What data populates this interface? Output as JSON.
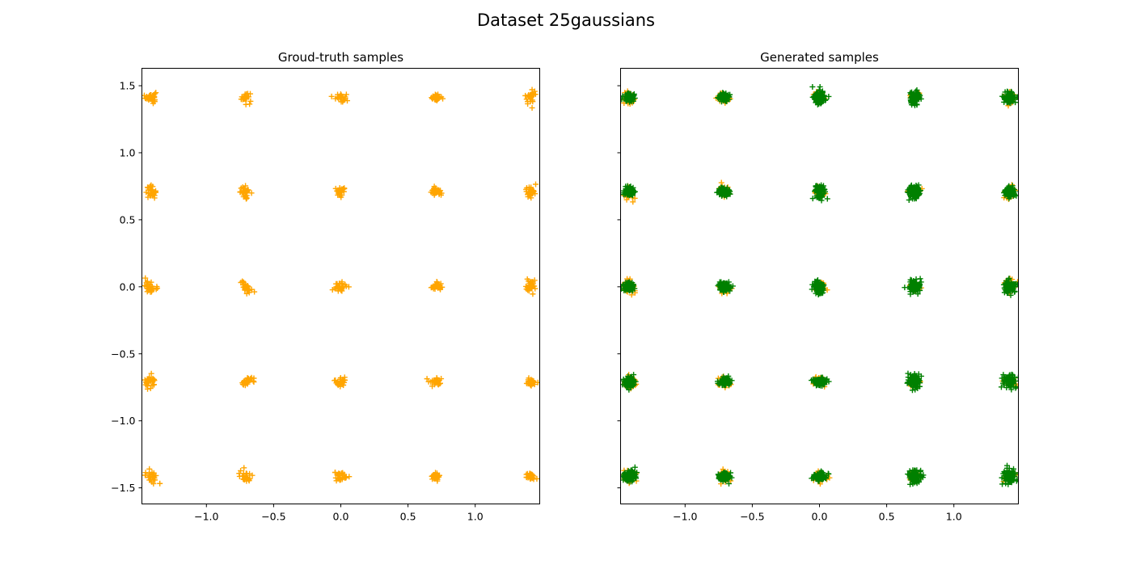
{
  "figure": {
    "suptitle": "Dataset 25gaussians"
  },
  "colors": {
    "ground_truth": "#ffa500",
    "generated": "#008000",
    "axes": "#000000",
    "background": "#ffffff"
  },
  "chart_data": [
    {
      "type": "scatter",
      "title": "Groud-truth samples",
      "xlabel": "",
      "ylabel": "",
      "xlim": [
        -1.48,
        1.48
      ],
      "ylim": [
        -1.62,
        1.63
      ],
      "xticks": [
        -1.0,
        -0.5,
        0.0,
        0.5,
        1.0
      ],
      "xtick_labels": [
        "−1.0",
        "−0.5",
        "0.0",
        "0.5",
        "1.0"
      ],
      "yticks": [
        -1.5,
        -1.0,
        -0.5,
        0.0,
        0.5,
        1.0,
        1.5
      ],
      "ytick_labels": [
        "−1.5",
        "−1.0",
        "−0.5",
        "0.0",
        "0.5",
        "1.0",
        "1.5"
      ],
      "grid": false,
      "marker": "+",
      "series": [
        {
          "color": "#ffa500",
          "cluster_centers": [
            [
              -1.414,
              1.414
            ],
            [
              -0.707,
              1.414
            ],
            [
              0.0,
              1.414
            ],
            [
              0.707,
              1.414
            ],
            [
              1.414,
              1.414
            ],
            [
              -1.414,
              0.707
            ],
            [
              -0.707,
              0.707
            ],
            [
              0.0,
              0.707
            ],
            [
              0.707,
              0.707
            ],
            [
              1.414,
              0.707
            ],
            [
              -1.414,
              0.0
            ],
            [
              -0.707,
              0.0
            ],
            [
              0.0,
              0.0
            ],
            [
              0.707,
              0.0
            ],
            [
              1.414,
              0.0
            ],
            [
              -1.414,
              -0.707
            ],
            [
              -0.707,
              -0.707
            ],
            [
              0.0,
              -0.707
            ],
            [
              0.707,
              -0.707
            ],
            [
              1.414,
              -0.707
            ],
            [
              -1.414,
              -1.414
            ],
            [
              -0.707,
              -1.414
            ],
            [
              0.0,
              -1.414
            ],
            [
              0.707,
              -1.414
            ],
            [
              1.414,
              -1.414
            ]
          ],
          "cluster_std": 0.02
        }
      ]
    },
    {
      "type": "scatter",
      "title": "Generated samples",
      "xlabel": "",
      "ylabel": "",
      "xlim": [
        -1.48,
        1.48
      ],
      "ylim": [
        -1.62,
        1.63
      ],
      "xticks": [
        -1.0,
        -0.5,
        0.0,
        0.5,
        1.0
      ],
      "xtick_labels": [
        "−1.0",
        "−0.5",
        "0.0",
        "0.5",
        "1.0"
      ],
      "yticks": [
        -1.5,
        -1.0,
        -0.5,
        0.0,
        0.5,
        1.0,
        1.5
      ],
      "ytick_labels": [],
      "shared_y": true,
      "grid": false,
      "marker": "+",
      "series": [
        {
          "color": "#ffa500",
          "cluster_centers": [
            [
              -1.414,
              1.414
            ],
            [
              -0.707,
              1.414
            ],
            [
              0.0,
              1.414
            ],
            [
              0.707,
              1.414
            ],
            [
              1.414,
              1.414
            ],
            [
              -1.414,
              0.707
            ],
            [
              -0.707,
              0.707
            ],
            [
              0.0,
              0.707
            ],
            [
              0.707,
              0.707
            ],
            [
              1.414,
              0.707
            ],
            [
              -1.414,
              0.0
            ],
            [
              -0.707,
              0.0
            ],
            [
              0.0,
              0.0
            ],
            [
              0.707,
              0.0
            ],
            [
              1.414,
              0.0
            ],
            [
              -1.414,
              -0.707
            ],
            [
              -0.707,
              -0.707
            ],
            [
              0.0,
              -0.707
            ],
            [
              0.707,
              -0.707
            ],
            [
              1.414,
              -0.707
            ],
            [
              -1.414,
              -1.414
            ],
            [
              -0.707,
              -1.414
            ],
            [
              0.0,
              -1.414
            ],
            [
              0.707,
              -1.414
            ],
            [
              1.414,
              -1.414
            ]
          ],
          "cluster_std": 0.02
        },
        {
          "color": "#008000",
          "cluster_centers": [
            [
              -1.414,
              1.414
            ],
            [
              -0.707,
              1.414
            ],
            [
              0.0,
              1.414
            ],
            [
              0.707,
              1.414
            ],
            [
              1.414,
              1.414
            ],
            [
              -1.414,
              0.707
            ],
            [
              -0.707,
              0.707
            ],
            [
              0.0,
              0.707
            ],
            [
              0.707,
              0.707
            ],
            [
              1.414,
              0.707
            ],
            [
              -1.414,
              0.0
            ],
            [
              -0.707,
              0.0
            ],
            [
              0.0,
              0.0
            ],
            [
              0.707,
              0.0
            ],
            [
              1.414,
              0.0
            ],
            [
              -1.414,
              -0.707
            ],
            [
              -0.707,
              -0.707
            ],
            [
              0.0,
              -0.707
            ],
            [
              0.707,
              -0.707
            ],
            [
              1.414,
              -0.707
            ],
            [
              -1.414,
              -1.414
            ],
            [
              -0.707,
              -1.414
            ],
            [
              0.0,
              -1.414
            ],
            [
              0.707,
              -1.414
            ],
            [
              1.414,
              -1.414
            ]
          ],
          "cluster_std": 0.02
        }
      ]
    }
  ]
}
